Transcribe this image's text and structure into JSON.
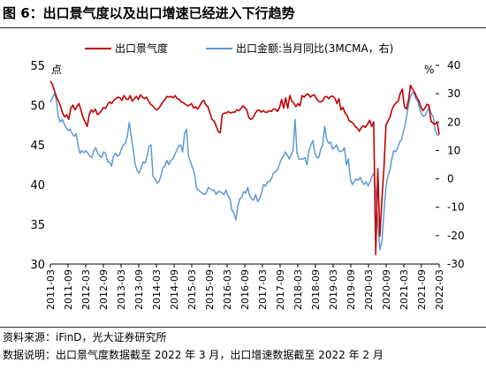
{
  "figure": {
    "title": "图 6：出口景气度以及出口增速已经进入下行趋势",
    "source": "资料来源：iFinD，光大证券研究所",
    "description": "数据说明：出口景气度数据截至 2022 年 3 月，出口增速数据截至 2022 年 2 月"
  },
  "colors": {
    "series_left": "#c00000",
    "series_right": "#5b9bd5",
    "axis": "#000000"
  },
  "chart_data": {
    "type": "line",
    "x_labels": [
      "2011-03",
      "2011-09",
      "2012-03",
      "2012-09",
      "2013-03",
      "2013-09",
      "2014-03",
      "2014-09",
      "2015-03",
      "2015-09",
      "2016-03",
      "2016-09",
      "2017-03",
      "2017-09",
      "2018-03",
      "2018-09",
      "2019-03",
      "2019-09",
      "2020-03",
      "2020-09",
      "2021-03",
      "2021-09",
      "2022-03"
    ],
    "y_left": {
      "unit": "点",
      "min": 30,
      "max": 55,
      "ticks": [
        30,
        35,
        40,
        45,
        50,
        55
      ]
    },
    "y_right": {
      "unit": "%",
      "min": -30,
      "max": 40,
      "ticks": [
        -30,
        -20,
        -10,
        0,
        10,
        20,
        30,
        40
      ]
    },
    "legend": {
      "position": "top"
    },
    "series": [
      {
        "name": "出口景气度",
        "axis": "left",
        "values": [
          53.0,
          52.6,
          51.8,
          51.0,
          50.5,
          49.8,
          49.0,
          48.5,
          48.8,
          48.2,
          49.6,
          50.0,
          49.4,
          49.8,
          50.2,
          49.3,
          48.4,
          47.9,
          47.3,
          48.8,
          49.4,
          49.1,
          49.5,
          48.8,
          49.0,
          49.3,
          49.7,
          49.6,
          50.1,
          50.4,
          50.2,
          50.6,
          50.8,
          51.0,
          50.9,
          50.6,
          51.2,
          50.8,
          50.7,
          51.2,
          50.5,
          50.8,
          51.1,
          50.7,
          51.3,
          51.0,
          50.8,
          51.0,
          50.5,
          50.1,
          49.9,
          49.6,
          49.4,
          49.6,
          50.0,
          50.4,
          50.7,
          51.1,
          51.0,
          51.1,
          50.9,
          51.2,
          50.8,
          50.7,
          50.4,
          50.3,
          50.1,
          49.9,
          50.0,
          50.2,
          49.6,
          49.8,
          49.5,
          49.9,
          50.4,
          50.6,
          50.0,
          49.8,
          49.0,
          48.2,
          48.0,
          47.4,
          46.7,
          46.5,
          48.8,
          49.0,
          49.0,
          49.2,
          49.0,
          49.1,
          49.1,
          49.4,
          49.3,
          49.5,
          49.9,
          49.7,
          49.4,
          48.4,
          48.2,
          48.4,
          48.9,
          49.3,
          49.4,
          49.1,
          49.3,
          49.1,
          49.1,
          49.3,
          49.2,
          49.5,
          49.5,
          49.2,
          49.7,
          50.7,
          49.6,
          50.9,
          49.6,
          51.2,
          50.5,
          50.2,
          49.8,
          50.2,
          49.9,
          51.2,
          51.0,
          51.3,
          51.4,
          51.0,
          51.2,
          51.3,
          50.8,
          50.5,
          50.4,
          50.5,
          51.0,
          51.1,
          50.8,
          51.1,
          51.1,
          50.9,
          50.2,
          50.8,
          49.4,
          49.7,
          49.0,
          48.7,
          48.0,
          47.9,
          47.7,
          47.3,
          47.1,
          46.7,
          47.2,
          47.4,
          47.2,
          47.6,
          48.1,
          47.3,
          47.9,
          31.2,
          42.0,
          33.5,
          38.0,
          42.0,
          47.5,
          48.0,
          48.5,
          49.5,
          50.0,
          50.3,
          50.5,
          51.5,
          52.0,
          49.8,
          49.5,
          50.6,
          52.5,
          52.0,
          51.6,
          51.0,
          50.6,
          49.8,
          49.3,
          49.6,
          50.1,
          50.0,
          48.0,
          47.7,
          47.6,
          47.8,
          46.3
        ]
      },
      {
        "name": "出口金额:当月同比(3MCMA，右)",
        "axis": "right",
        "values": [
          27.0,
          28.5,
          30.0,
          28.0,
          22.0,
          20.0,
          21.0,
          19.5,
          18.0,
          17.0,
          17.5,
          16.0,
          15.0,
          16.0,
          12.0,
          9.0,
          10.0,
          9.2,
          10.0,
          9.0,
          8.0,
          7.5,
          10.0,
          11.0,
          9.0,
          8.0,
          7.5,
          9.5,
          9.0,
          6.0,
          6.0,
          4.5,
          8.0,
          9.0,
          8.0,
          8.5,
          10.5,
          12.0,
          12.5,
          15.0,
          20.0,
          15.0,
          10.0,
          5.0,
          3.0,
          2.0,
          4.0,
          6.0,
          5.5,
          8.0,
          11.5,
          12.0,
          1.0,
          0.0,
          -1.5,
          -1.0,
          1.0,
          4.0,
          4.5,
          6.5,
          5.0,
          6.5,
          7.0,
          8.5,
          10.0,
          11.5,
          12.0,
          9.5,
          16.0,
          17.5,
          8.0,
          6.0,
          4.0,
          2.0,
          -3.0,
          -4.0,
          -4.5,
          -5.0,
          -5.5,
          -5.0,
          -3.0,
          -3.5,
          -4.0,
          -4.0,
          -5.5,
          -4.5,
          -4.5,
          -5.0,
          -5.5,
          -4.0,
          -6.0,
          -7.0,
          -11.0,
          -12.0,
          -14.5,
          -9.5,
          -7.0,
          -6.5,
          -4.5,
          -5.0,
          -3.0,
          -6.0,
          -7.0,
          -7.5,
          -5.5,
          -8.0,
          -7.0,
          -5.0,
          -2.0,
          -2.5,
          -1.0,
          -1.0,
          0.0,
          2.0,
          2.5,
          3.0,
          5.0,
          7.0,
          8.0,
          9.5,
          8.5,
          7.0,
          8.5,
          10.0,
          21.0,
          9.0,
          7.0,
          7.0,
          7.0,
          7.5,
          5.0,
          10.0,
          12.0,
          13.5,
          9.0,
          7.5,
          7.5,
          10.5,
          12.0,
          18.5,
          14.0,
          12.5,
          13.0,
          10.5,
          11.0,
          12.0,
          10.0,
          9.5,
          10.0,
          11.0,
          5.0,
          7.0,
          0.0,
          -2.0,
          -1.0,
          0.0,
          -0.5,
          0.5,
          -1.0,
          -2.0,
          -1.0,
          -2.5,
          -1.0,
          1.0,
          2.0,
          -5.0,
          -17.0,
          -25.0,
          -22.0,
          -12.0,
          -3.0,
          1.0,
          3.0,
          7.0,
          10.0,
          9.5,
          11.0,
          13.0,
          14.0,
          17.0,
          20.0,
          24.0,
          28.0,
          30.0,
          30.5,
          28.5,
          27.5,
          25.0,
          23.0,
          22.0,
          22.5,
          24.0,
          25.0,
          23.0,
          22.0,
          17.0,
          15.5,
          15.5
        ]
      }
    ]
  }
}
